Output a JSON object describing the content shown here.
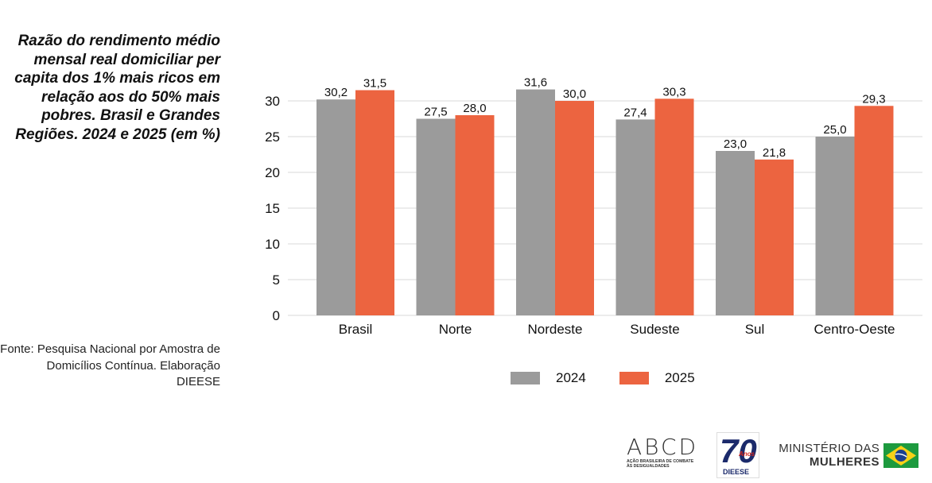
{
  "header": {
    "title": "Razão do rendimento médio mensal real domiciliar per capita dos 1% mais ricos em relação aos do 50% mais pobres. Brasil e Grandes Regiões. 2024 e 2025 (em %)"
  },
  "footer": {
    "source": "Fonte: Pesquisa Nacional por Amostra de Domicílios Contínua. Elaboração DIEESE"
  },
  "logos": {
    "abcd_mark": "ABCD",
    "abcd_sub": "Ação Brasileira de Combate às Desigualdades",
    "dieese_number": "70",
    "dieese_anos": "Anos",
    "dieese_name": "DIEESE",
    "ministerio_line1": "MINISTÉRIO DAS",
    "ministerio_line2": "MULHERES"
  },
  "colors": {
    "series_2024": "#9b9b9b",
    "series_2025": "#ec6440",
    "grid": "#d9d9d9"
  },
  "chart_data": {
    "type": "bar",
    "title": "Razão do rendimento médio mensal real domiciliar per capita dos 1% mais ricos em relação aos do 50% mais pobres. Brasil e Grandes Regiões. 2024 e 2025 (em %)",
    "categories": [
      "Brasil",
      "Norte",
      "Nordeste",
      "Sudeste",
      "Sul",
      "Centro-Oeste"
    ],
    "series": [
      {
        "name": "2024",
        "values": [
          30.2,
          27.5,
          31.6,
          27.4,
          23.0,
          25.0
        ],
        "labels": [
          "30,2",
          "27,5",
          "31,6",
          "27,4",
          "23,0",
          "25,0"
        ]
      },
      {
        "name": "2025",
        "values": [
          31.5,
          28.0,
          30.0,
          30.3,
          21.8,
          29.3
        ],
        "labels": [
          "31,5",
          "28,0",
          "30,0",
          "30,3",
          "21,8",
          "29,3"
        ]
      }
    ],
    "y_ticks": [
      "0",
      "5",
      "10",
      "15",
      "20",
      "25",
      "30"
    ],
    "ylim": [
      0,
      33
    ],
    "grid": true,
    "legend": "bottom"
  }
}
